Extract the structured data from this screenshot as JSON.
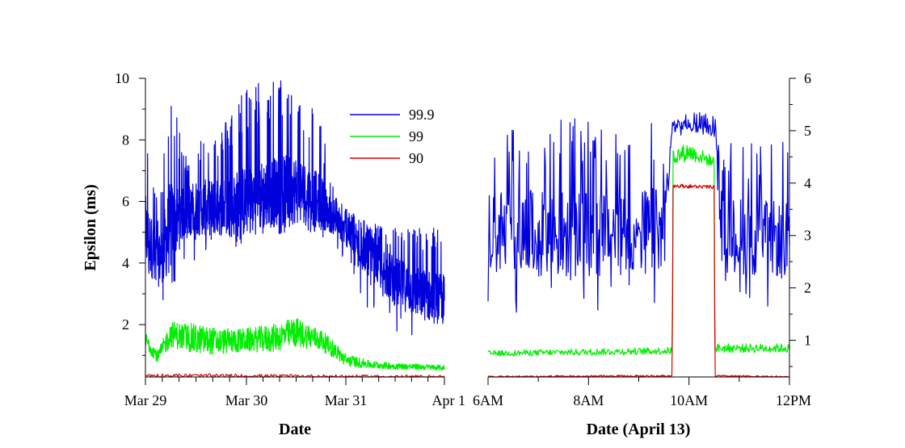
{
  "chart_data": [
    {
      "type": "line",
      "panel": "left",
      "xlabel": "Date",
      "ylabel": "Epsilon (ms)",
      "x_ticks": [
        "Mar 29",
        "Mar 30",
        "Mar 31",
        "Apr 1"
      ],
      "y_ticks": [
        2,
        4,
        6,
        8,
        10
      ],
      "ylim": [
        0.3,
        10
      ],
      "legend": {
        "position": "top-right of left panel",
        "entries": [
          "99.9",
          "99",
          "90"
        ]
      },
      "series": [
        {
          "name": "99.9",
          "color": "#0000dd",
          "x": [
            "Mar 29 00:00",
            "Mar 29 03:00",
            "Mar 29 06:00",
            "Mar 29 09:00",
            "Mar 29 12:00",
            "Mar 29 18:00",
            "Mar 30 00:00",
            "Mar 30 06:00",
            "Mar 30 12:00",
            "Mar 30 18:00",
            "Mar 30 21:00",
            "Mar 31 00:00",
            "Mar 31 06:00",
            "Mar 31 12:00",
            "Mar 31 18:00",
            "Apr 1 00:00"
          ],
          "mean": [
            5.0,
            4.0,
            5.2,
            5.6,
            5.8,
            5.8,
            6.0,
            6.3,
            6.4,
            6.0,
            5.4,
            5.0,
            4.2,
            3.4,
            3.0,
            2.8
          ],
          "low": [
            3.5,
            2.3,
            3.0,
            4.0,
            4.1,
            4.3,
            4.6,
            4.9,
            5.0,
            4.8,
            4.3,
            3.8,
            2.2,
            1.6,
            1.5,
            1.4
          ],
          "high": [
            8.8,
            5.8,
            9.8,
            7.6,
            8.1,
            8.4,
            9.9,
            10.0,
            10.0,
            8.7,
            6.4,
            5.8,
            5.3,
            5.2,
            5.2,
            5.2
          ]
        },
        {
          "name": "99",
          "color": "#00ee00",
          "x": [
            "Mar 29 00:00",
            "Mar 29 03:00",
            "Mar 29 06:00",
            "Mar 29 12:00",
            "Mar 29 18:00",
            "Mar 30 00:00",
            "Mar 30 06:00",
            "Mar 30 12:00",
            "Mar 30 18:00",
            "Mar 30 21:00",
            "Mar 31 00:00",
            "Mar 31 06:00",
            "Mar 31 12:00",
            "Apr 1 00:00"
          ],
          "mean": [
            1.5,
            0.95,
            1.7,
            1.5,
            1.45,
            1.5,
            1.55,
            1.75,
            1.5,
            1.2,
            0.85,
            0.7,
            0.65,
            0.6
          ],
          "low": [
            1.1,
            0.7,
            1.2,
            1.1,
            1.0,
            1.1,
            1.1,
            1.2,
            1.0,
            0.8,
            0.6,
            0.55,
            0.5,
            0.45
          ],
          "high": [
            1.9,
            1.3,
            2.4,
            2.6,
            2.2,
            2.2,
            2.4,
            2.6,
            2.0,
            1.6,
            1.2,
            0.9,
            0.8,
            0.7
          ]
        },
        {
          "name": "90",
          "color": "#dd0000",
          "x": [
            "Mar 29 00:00",
            "Apr 1 00:00"
          ],
          "mean": [
            0.35,
            0.3
          ],
          "low": [
            0.28,
            0.25
          ],
          "high": [
            0.45,
            0.4
          ]
        }
      ]
    },
    {
      "type": "line",
      "panel": "right",
      "xlabel": "Date (April 13)",
      "ylabel": "",
      "x_ticks": [
        "6AM",
        "8AM",
        "10AM",
        "12PM"
      ],
      "y_ticks": [
        1,
        2,
        3,
        4,
        5,
        6
      ],
      "ylim": [
        0.3,
        6
      ],
      "series": [
        {
          "name": "99.9",
          "color": "#0000dd",
          "x": [
            "6:00",
            "7:00",
            "8:00",
            "9:00",
            "9:30",
            "9:40",
            "10:00",
            "10:30",
            "10:40",
            "11:00",
            "12:00"
          ],
          "mean": [
            3.1,
            3.0,
            3.0,
            3.1,
            3.1,
            5.1,
            5.1,
            5.0,
            3.0,
            3.0,
            2.9
          ],
          "low": [
            1.5,
            1.5,
            1.4,
            1.5,
            1.6,
            4.9,
            4.9,
            4.8,
            1.5,
            1.5,
            1.6
          ],
          "high": [
            5.2,
            5.3,
            5.2,
            5.2,
            5.2,
            5.4,
            5.4,
            5.3,
            4.8,
            4.8,
            4.8
          ]
        },
        {
          "name": "99",
          "color": "#00ee00",
          "x": [
            "6:00",
            "9:40",
            "9:41",
            "10:00",
            "10:30",
            "10:31",
            "12:00"
          ],
          "mean": [
            0.75,
            0.8,
            4.5,
            4.6,
            4.4,
            0.85,
            0.85
          ],
          "low": [
            0.7,
            0.7,
            4.4,
            4.4,
            4.3,
            0.75,
            0.75
          ],
          "high": [
            0.85,
            0.9,
            4.9,
            4.9,
            4.6,
            1.0,
            1.0
          ]
        },
        {
          "name": "90",
          "color": "#dd0000",
          "x": [
            "6:00",
            "9:40",
            "9:41",
            "10:30",
            "10:31",
            "12:00"
          ],
          "mean": [
            0.3,
            0.32,
            3.95,
            3.92,
            0.32,
            0.3
          ],
          "low": [
            0.28,
            0.3,
            3.9,
            3.88,
            0.3,
            0.28
          ],
          "high": [
            0.35,
            0.35,
            4.0,
            3.98,
            0.35,
            0.33
          ]
        }
      ]
    }
  ]
}
